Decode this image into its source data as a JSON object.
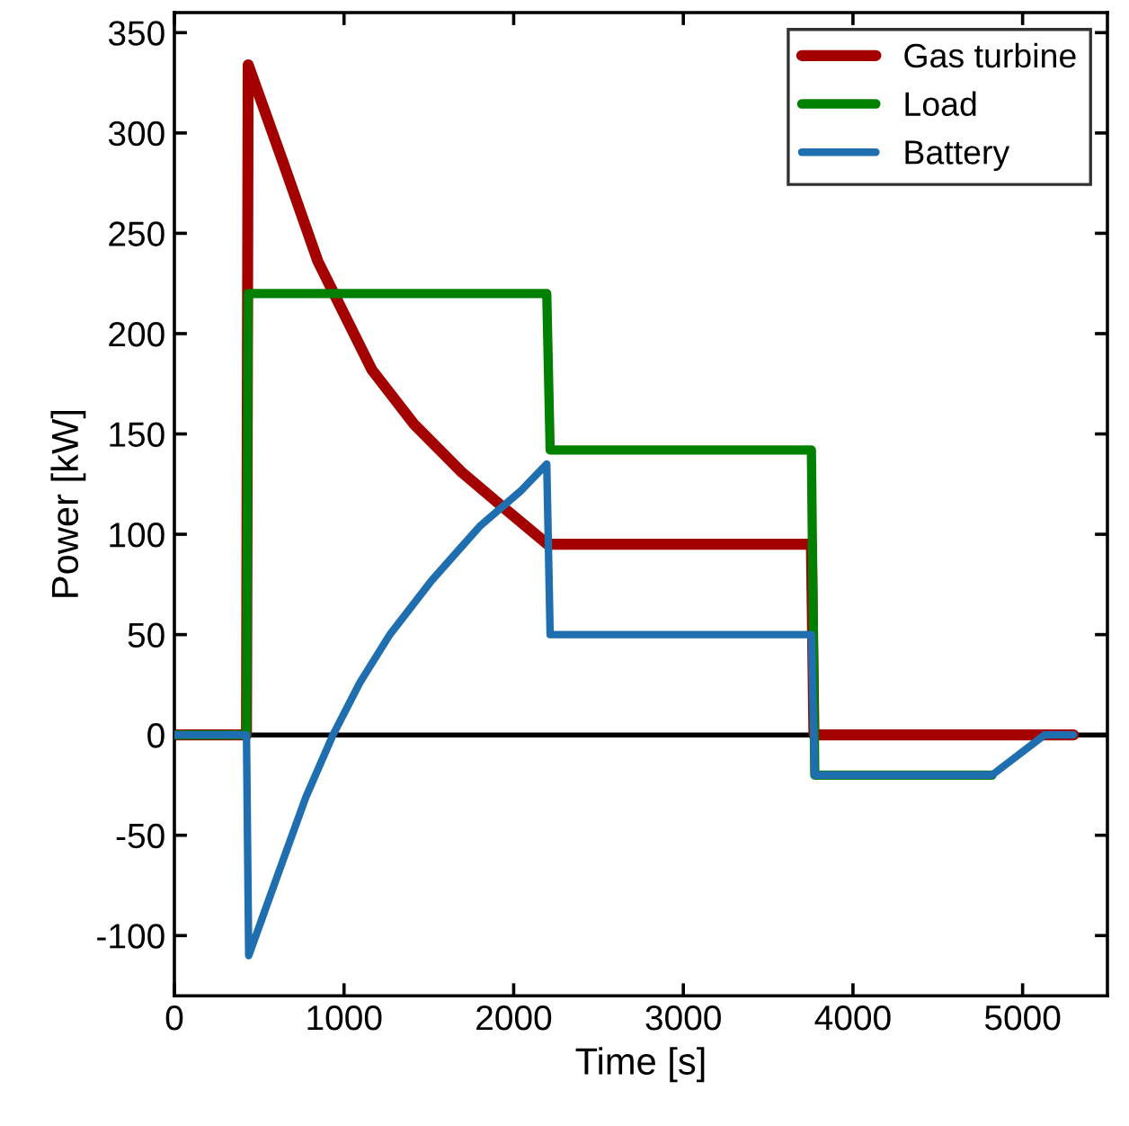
{
  "chart_data": {
    "type": "line",
    "xlabel": "Time [s]",
    "ylabel": "Power [kW]",
    "xlim": [
      0,
      5500
    ],
    "ylim": [
      -130,
      360
    ],
    "xticks": [
      0,
      1000,
      2000,
      3000,
      4000,
      5000
    ],
    "yticks": [
      -100,
      -50,
      0,
      50,
      100,
      150,
      200,
      250,
      300,
      350
    ],
    "grid": false,
    "legend": "top right",
    "line_style": "solid",
    "marker": "none",
    "ref_lines": [
      {
        "axis": "y",
        "value": 0,
        "color": "#000000"
      }
    ],
    "series": [
      {
        "name": "Gas turbine",
        "color": "#a50000",
        "x": [
          0,
          425,
          435,
          634,
          846,
          952,
          1164,
          1411,
          1693,
          1945,
          2200,
          3755,
          3770,
          5300
        ],
        "values": [
          0,
          0,
          334,
          287,
          236,
          218,
          182,
          155,
          131,
          113,
          95,
          95,
          0,
          0
        ]
      },
      {
        "name": "Load",
        "color": "#008000",
        "x": [
          0,
          425,
          435,
          2195,
          2215,
          3755,
          3775,
          4820
        ],
        "values": [
          0,
          0,
          220,
          220,
          142,
          142,
          -20,
          -20
        ]
      },
      {
        "name": "Battery",
        "color": "#1f6fb0",
        "x": [
          0,
          425,
          438,
          634,
          775,
          935,
          1093,
          1270,
          1517,
          1800,
          2047,
          2195,
          2215,
          3755,
          3775,
          4820,
          5130,
          5300
        ],
        "values": [
          0,
          0,
          -110,
          -64,
          -31,
          0,
          26,
          50,
          77,
          104,
          122,
          135,
          50,
          50,
          -20,
          -20,
          0,
          0
        ]
      }
    ]
  }
}
